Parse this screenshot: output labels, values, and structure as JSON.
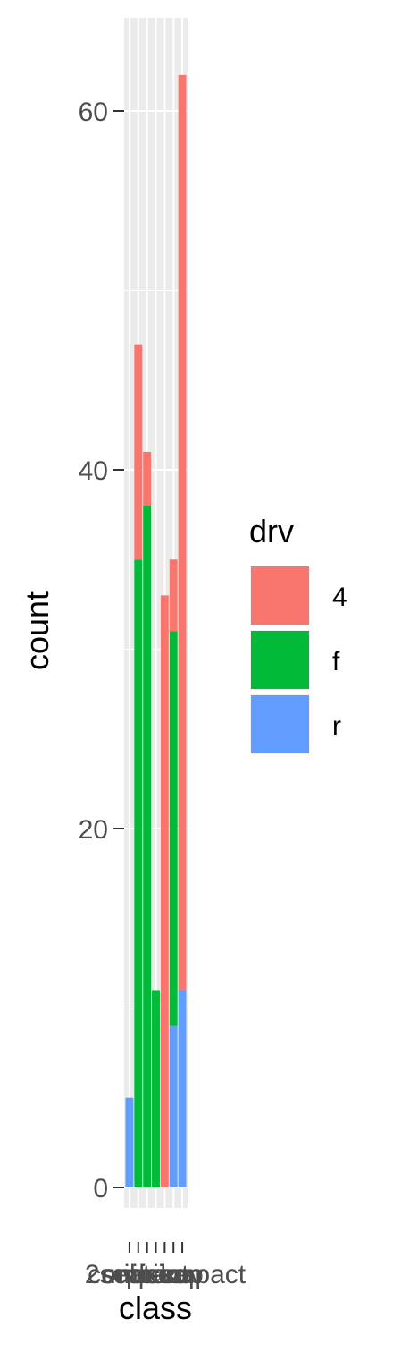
{
  "chart_data": {
    "type": "bar",
    "stacked": true,
    "xlabel": "class",
    "ylabel": "count",
    "categories": [
      "2seater",
      "compact",
      "midsize",
      "minivan",
      "pickup",
      "subcompact",
      "suv"
    ],
    "series": [
      {
        "name": "4",
        "color": "#F8766D",
        "values": [
          0,
          12,
          3,
          0,
          33,
          4,
          51
        ]
      },
      {
        "name": "f",
        "color": "#00BA38",
        "values": [
          0,
          35,
          38,
          11,
          0,
          22,
          0
        ]
      },
      {
        "name": "r",
        "color": "#619CFF",
        "values": [
          5,
          0,
          0,
          0,
          0,
          9,
          11
        ]
      }
    ],
    "ylim": [
      0,
      62
    ],
    "yticks": [
      0,
      20,
      40,
      60
    ],
    "grid": true,
    "legend": {
      "title": "drv",
      "position": "right",
      "entries": [
        "4",
        "f",
        "r"
      ]
    }
  }
}
